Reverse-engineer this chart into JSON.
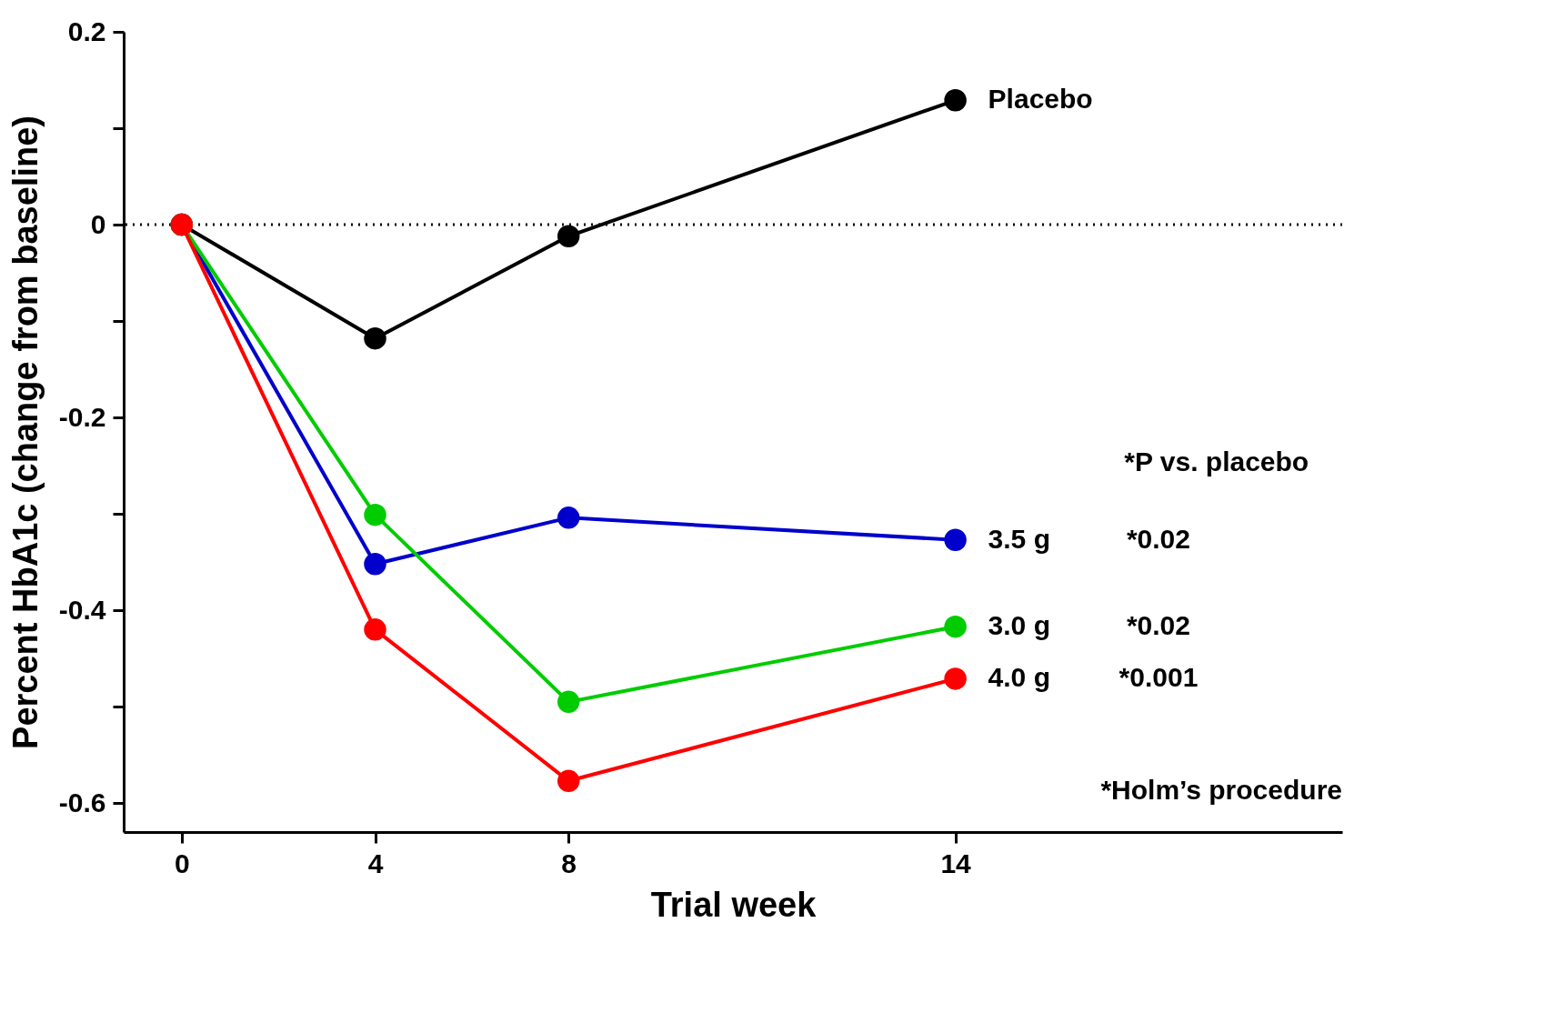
{
  "chart_data": {
    "type": "line",
    "xlabel": "Trial week",
    "ylabel": "Percent HbA1c (change from baseline)",
    "categories": [
      "0",
      "4",
      "8",
      null,
      "14",
      null
    ],
    "series": [
      {
        "name": "Placebo",
        "color": "#000000",
        "values": [
          0,
          -0.118,
          -0.012,
          null,
          0.129,
          null
        ]
      },
      {
        "name": "3.5 g",
        "color": "#0000cc",
        "values": [
          0,
          -0.352,
          -0.304,
          null,
          -0.327,
          null
        ]
      },
      {
        "name": "3.0 g",
        "color": "#00cc00",
        "values": [
          0,
          -0.301,
          -0.495,
          null,
          -0.417,
          null
        ]
      },
      {
        "name": "4.0 g",
        "color": "#ff0000",
        "values": [
          0,
          -0.42,
          -0.577,
          null,
          -0.471,
          null
        ]
      }
    ],
    "ylim": [
      -0.63,
      0.2
    ],
    "yticks": [
      0.2,
      {
        "value": 0.1,
        "label": null
      },
      0,
      {
        "value": -0.1,
        "label": null
      },
      -0.2,
      {
        "value": -0.3,
        "label": null
      },
      -0.4,
      {
        "value": -0.5,
        "label": null
      },
      -0.6
    ],
    "ref_lines": [
      {
        "axis": "y",
        "value": 0,
        "line_style": "dotted",
        "color": "#000000"
      }
    ],
    "annotations": [
      "*P vs. placebo",
      "*0.02",
      "*0.02",
      "*0.001",
      "*Holm’s procedure"
    ],
    "marker": "circle",
    "line_style": "solid",
    "grid": false
  }
}
